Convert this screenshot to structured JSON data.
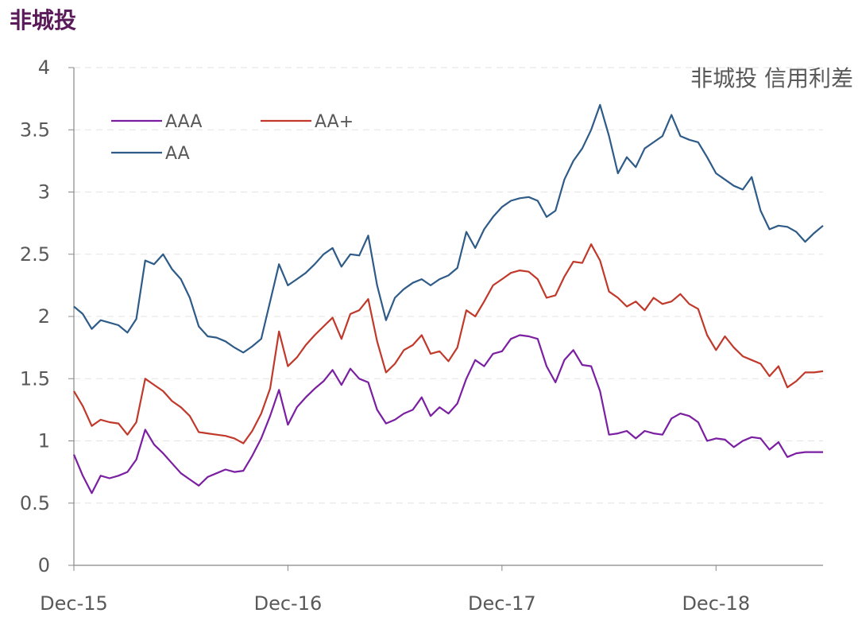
{
  "page_title": "非城投",
  "chart_data": {
    "type": "line",
    "title": "非城投 信用利差",
    "xlabel": "",
    "ylabel": "",
    "ylim": [
      0,
      4
    ],
    "yticks": [
      "0",
      "0.5",
      "1",
      "1.5",
      "2",
      "2.5",
      "3",
      "3.5",
      "4"
    ],
    "xticks": [
      "Dec-15",
      "Dec-16",
      "Dec-17",
      "Dec-18"
    ],
    "x_range": [
      0,
      42
    ],
    "x_note": "x values are months since Dec-15",
    "grid": "horizontal dashed",
    "legend_position": "top-left",
    "series": [
      {
        "name": "AAA",
        "color": "#7b1fa2",
        "x": [
          0,
          0.5,
          1,
          1.5,
          2,
          2.5,
          3,
          3.5,
          4,
          4.5,
          5,
          5.5,
          6,
          6.5,
          7,
          7.5,
          8,
          8.5,
          9,
          9.5,
          10,
          10.5,
          11,
          11.5,
          12,
          12.5,
          13,
          13.5,
          14,
          14.5,
          15,
          15.5,
          16,
          16.5,
          17,
          17.5,
          18,
          18.5,
          19,
          19.5,
          20,
          20.5,
          21,
          21.5,
          22,
          22.5,
          23,
          23.5,
          24,
          24.5,
          25,
          25.5,
          26,
          26.5,
          27,
          27.5,
          28,
          28.5,
          29,
          29.5,
          30,
          30.5,
          31,
          31.5,
          32,
          32.5,
          33,
          33.5,
          34,
          34.5,
          35,
          35.5,
          36,
          36.5,
          37,
          37.5,
          38,
          38.5,
          39,
          39.5,
          40,
          40.5,
          41,
          41.5,
          42
        ],
        "values": [
          0.89,
          0.72,
          0.58,
          0.72,
          0.7,
          0.72,
          0.75,
          0.85,
          1.09,
          0.97,
          0.9,
          0.82,
          0.74,
          0.69,
          0.64,
          0.71,
          0.74,
          0.77,
          0.75,
          0.76,
          0.88,
          1.02,
          1.2,
          1.41,
          1.13,
          1.27,
          1.35,
          1.42,
          1.48,
          1.57,
          1.45,
          1.58,
          1.5,
          1.47,
          1.25,
          1.14,
          1.17,
          1.22,
          1.25,
          1.35,
          1.2,
          1.27,
          1.22,
          1.3,
          1.5,
          1.65,
          1.6,
          1.7,
          1.72,
          1.82,
          1.85,
          1.84,
          1.82,
          1.6,
          1.47,
          1.65,
          1.73,
          1.61,
          1.6,
          1.4,
          1.05,
          1.06,
          1.08,
          1.02,
          1.08,
          1.06,
          1.05,
          1.18,
          1.22,
          1.2,
          1.15,
          1.0,
          1.02,
          1.01,
          0.95,
          1.0,
          1.03,
          1.02,
          0.93,
          0.99,
          0.87,
          0.9,
          0.91,
          0.91,
          0.91
        ]
      },
      {
        "name": "AA+",
        "color": "#c0392b",
        "x": [
          0,
          0.5,
          1,
          1.5,
          2,
          2.5,
          3,
          3.5,
          4,
          4.5,
          5,
          5.5,
          6,
          6.5,
          7,
          7.5,
          8,
          8.5,
          9,
          9.5,
          10,
          10.5,
          11,
          11.5,
          12,
          12.5,
          13,
          13.5,
          14,
          14.5,
          15,
          15.5,
          16,
          16.5,
          17,
          17.5,
          18,
          18.5,
          19,
          19.5,
          20,
          20.5,
          21,
          21.5,
          22,
          22.5,
          23,
          23.5,
          24,
          24.5,
          25,
          25.5,
          26,
          26.5,
          27,
          27.5,
          28,
          28.5,
          29,
          29.5,
          30,
          30.5,
          31,
          31.5,
          32,
          32.5,
          33,
          33.5,
          34,
          34.5,
          35,
          35.5,
          36,
          36.5,
          37,
          37.5,
          38,
          38.5,
          39,
          39.5,
          40,
          40.5,
          41,
          41.5,
          42
        ],
        "values": [
          1.4,
          1.28,
          1.12,
          1.17,
          1.15,
          1.14,
          1.05,
          1.15,
          1.5,
          1.45,
          1.4,
          1.32,
          1.27,
          1.2,
          1.07,
          1.06,
          1.05,
          1.04,
          1.02,
          0.98,
          1.08,
          1.22,
          1.42,
          1.88,
          1.6,
          1.67,
          1.77,
          1.85,
          1.92,
          1.99,
          1.82,
          2.02,
          2.05,
          2.14,
          1.8,
          1.55,
          1.62,
          1.73,
          1.77,
          1.85,
          1.7,
          1.72,
          1.64,
          1.75,
          2.05,
          2.0,
          2.12,
          2.25,
          2.3,
          2.35,
          2.37,
          2.36,
          2.3,
          2.15,
          2.17,
          2.32,
          2.44,
          2.43,
          2.58,
          2.45,
          2.2,
          2.15,
          2.08,
          2.12,
          2.05,
          2.15,
          2.1,
          2.12,
          2.18,
          2.1,
          2.06,
          1.85,
          1.73,
          1.84,
          1.75,
          1.68,
          1.65,
          1.62,
          1.52,
          1.6,
          1.43,
          1.48,
          1.55,
          1.55,
          1.56
        ]
      },
      {
        "name": "AA",
        "color": "#2e5b87",
        "x": [
          0,
          0.5,
          1,
          1.5,
          2,
          2.5,
          3,
          3.5,
          4,
          4.5,
          5,
          5.5,
          6,
          6.5,
          7,
          7.5,
          8,
          8.5,
          9,
          9.5,
          10,
          10.5,
          11,
          11.5,
          12,
          12.5,
          13,
          13.5,
          14,
          14.5,
          15,
          15.5,
          16,
          16.5,
          17,
          17.5,
          18,
          18.5,
          19,
          19.5,
          20,
          20.5,
          21,
          21.5,
          22,
          22.5,
          23,
          23.5,
          24,
          24.5,
          25,
          25.5,
          26,
          26.5,
          27,
          27.5,
          28,
          28.5,
          29,
          29.5,
          30,
          30.5,
          31,
          31.5,
          32,
          32.5,
          33,
          33.5,
          34,
          34.5,
          35,
          35.5,
          36,
          36.5,
          37,
          37.5,
          38,
          38.5,
          39,
          39.5,
          40,
          40.5,
          41,
          41.5,
          42
        ],
        "values": [
          2.08,
          2.02,
          1.9,
          1.97,
          1.95,
          1.93,
          1.87,
          1.98,
          2.45,
          2.42,
          2.5,
          2.38,
          2.3,
          2.15,
          1.92,
          1.84,
          1.83,
          1.8,
          1.75,
          1.71,
          1.76,
          1.82,
          2.12,
          2.42,
          2.25,
          2.3,
          2.35,
          2.42,
          2.5,
          2.55,
          2.4,
          2.5,
          2.49,
          2.65,
          2.25,
          1.97,
          2.15,
          2.22,
          2.27,
          2.3,
          2.25,
          2.3,
          2.33,
          2.39,
          2.68,
          2.55,
          2.7,
          2.8,
          2.88,
          2.93,
          2.95,
          2.96,
          2.93,
          2.8,
          2.85,
          3.1,
          3.25,
          3.35,
          3.5,
          3.7,
          3.45,
          3.15,
          3.28,
          3.2,
          3.35,
          3.4,
          3.45,
          3.62,
          3.45,
          3.42,
          3.4,
          3.28,
          3.15,
          3.1,
          3.05,
          3.02,
          3.12,
          2.85,
          2.7,
          2.73,
          2.72,
          2.68,
          2.6,
          2.67,
          2.73
        ]
      }
    ]
  }
}
